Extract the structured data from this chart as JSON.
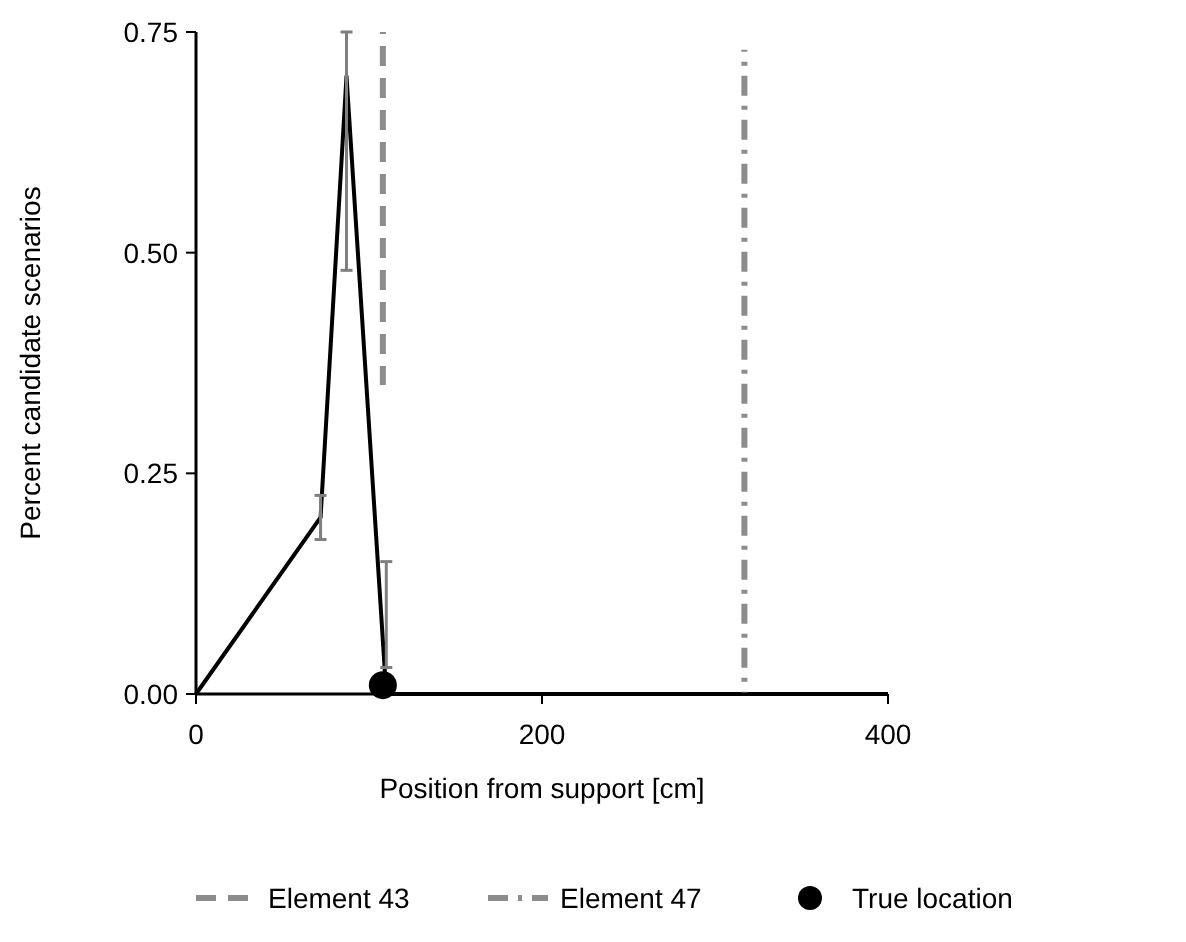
{
  "chart_data": {
    "type": "line",
    "xlabel": "Position from support [cm]",
    "ylabel": "Percent candidate scenarios",
    "xlim": [
      0,
      400
    ],
    "xticks": [
      0,
      200,
      400
    ],
    "ylim": [
      0,
      0.75
    ],
    "yticks": [
      {
        "value": 0,
        "label": "0.00"
      },
      {
        "value": 0.25,
        "label": "0.25"
      },
      {
        "value": 0.5,
        "label": "0.50"
      },
      {
        "value": 0.75,
        "label": "0.75"
      }
    ],
    "legend": "bottom",
    "grid": false,
    "series": [
      {
        "color": "#000000",
        "x": [
          0,
          72,
          87,
          110,
          400
        ],
        "values": [
          0,
          0.2,
          0.7,
          0,
          0
        ],
        "errors": [
          null,
          [
            0.175,
            0.225
          ],
          [
            0.48,
            0.75
          ],
          [
            0.03,
            0.15
          ],
          null
        ],
        "marker": "none",
        "line_style": "solid"
      },
      {
        "name": "Element 43",
        "color": "#8c8c8c",
        "x": [
          108,
          108
        ],
        "values": [
          0.35,
          0.75
        ],
        "marker": "none",
        "line_style": "dashed"
      },
      {
        "name": "Element 47",
        "color": "#8c8c8c",
        "x": [
          317,
          317
        ],
        "values": [
          0,
          0.73
        ],
        "marker": "none",
        "line_style": "dashdot"
      },
      {
        "type": "scatter",
        "name": "True location",
        "color": "#000000",
        "x": [
          108
        ],
        "values": [
          0.01
        ],
        "marker": "circle"
      }
    ]
  }
}
